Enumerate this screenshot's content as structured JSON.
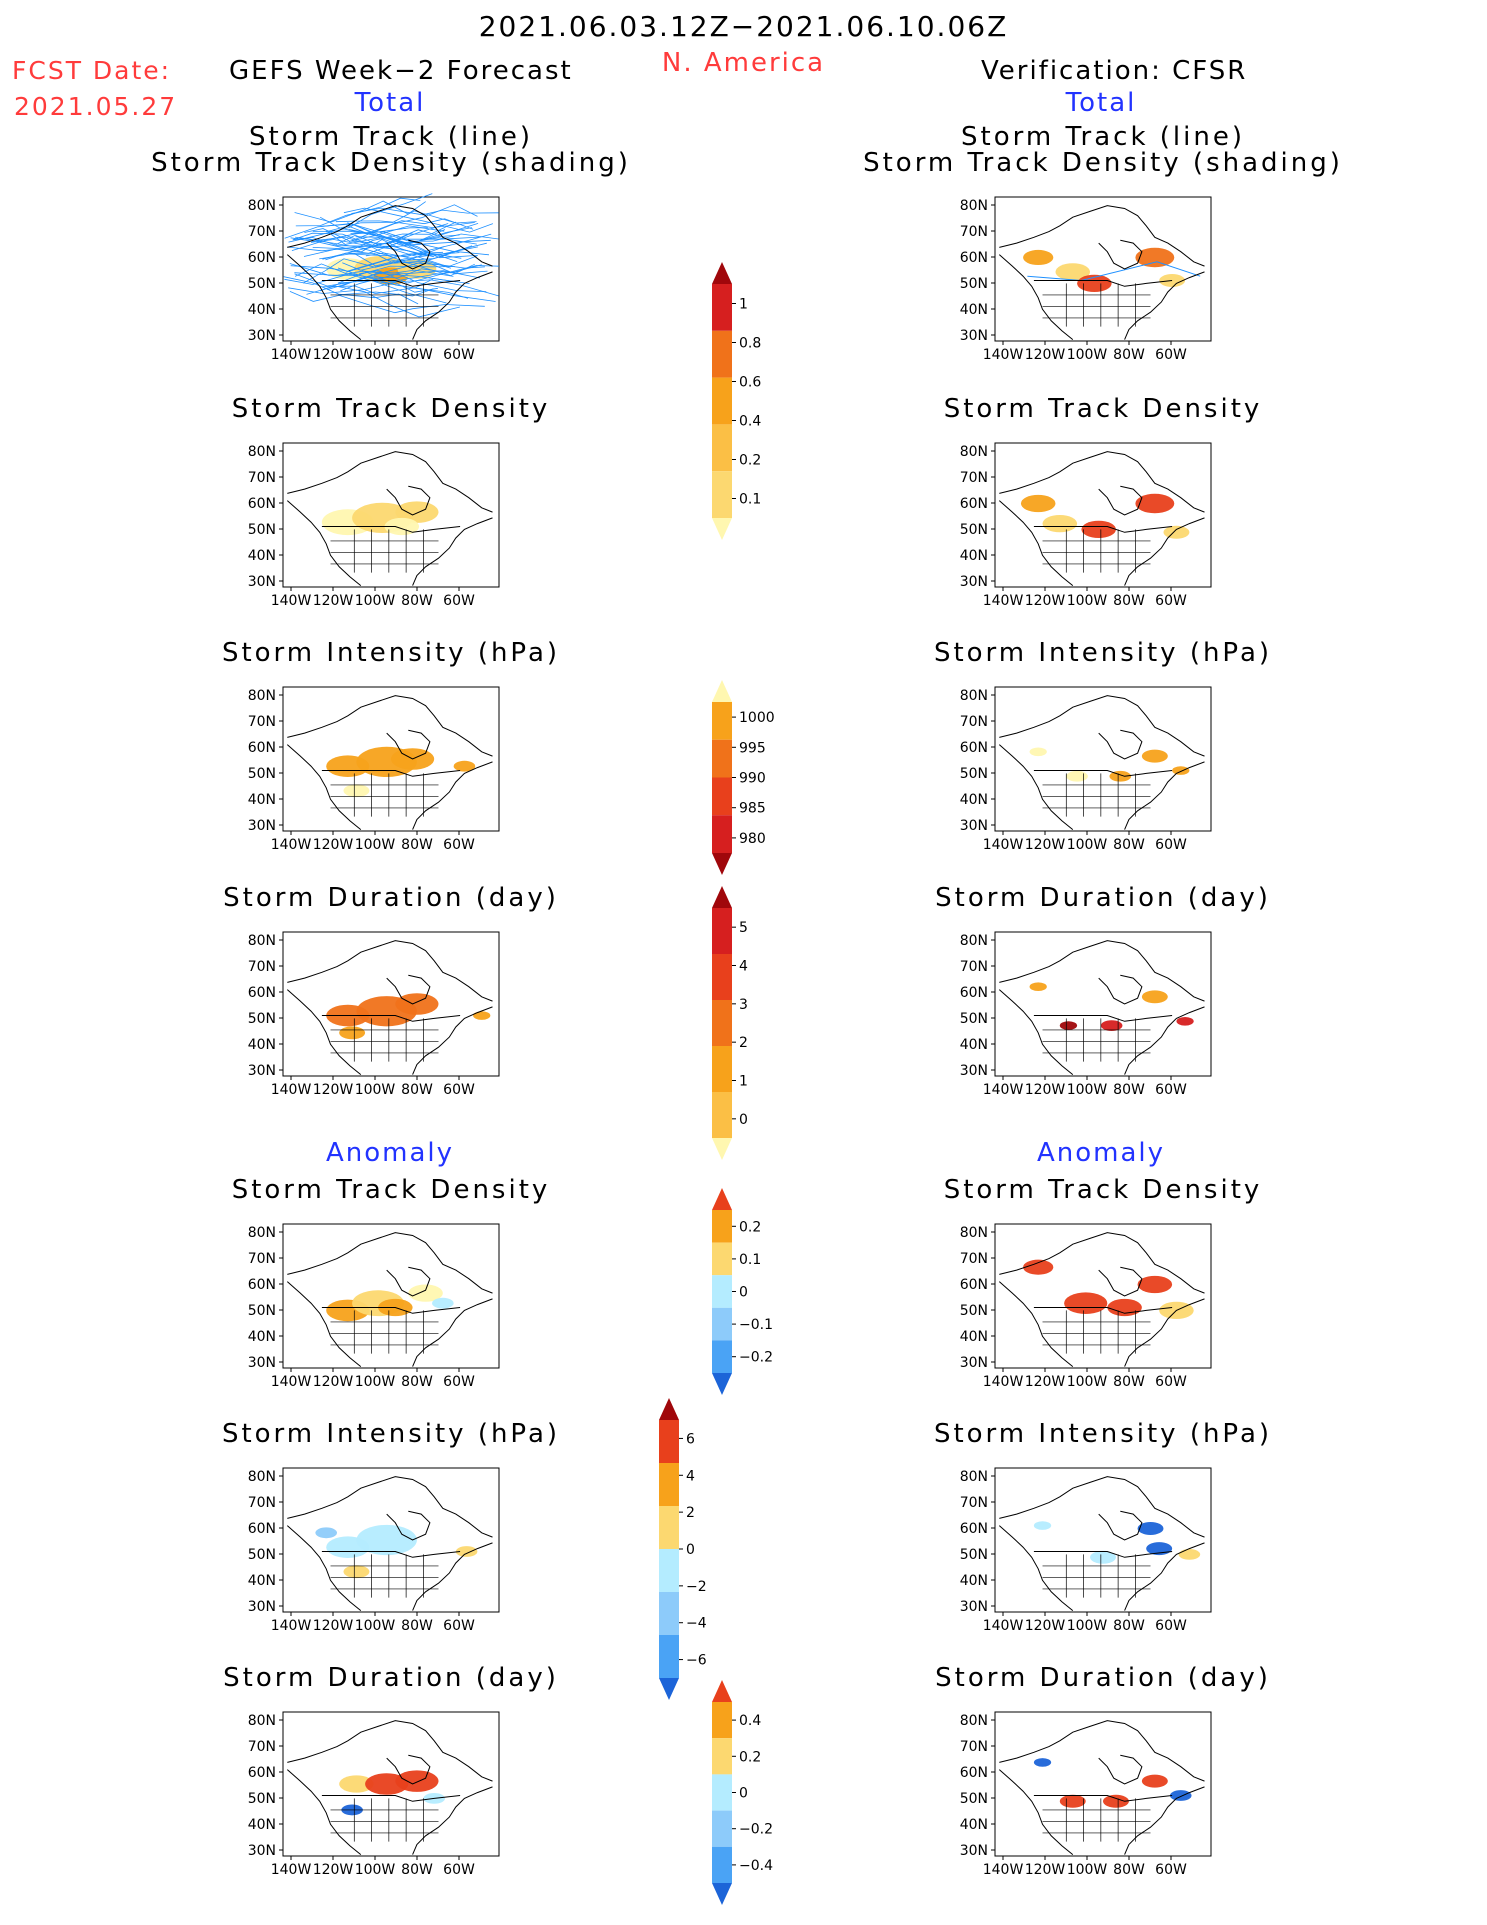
{
  "header": {
    "period": "2021.06.03.12Z−2021.06.10.06Z",
    "region": "N. America",
    "fcst_label": "FCST Date:",
    "fcst_date": "2021.05.27",
    "left_title": "GEFS Week−2 Forecast",
    "right_title": "Verification: CFSR",
    "left_total": "Total",
    "right_total": "Total",
    "left_anomaly": "Anomaly",
    "right_anomaly": "Anomaly"
  },
  "colors": {
    "text_red": "#ff3b3b",
    "text_blue": "#2233ff",
    "track_line": "#1e90ff",
    "pale_yellow": "#fff7b0",
    "yellow": "#fcd870",
    "light_orange": "#fbbf45",
    "orange": "#f7a21b",
    "dark_orange": "#f0721a",
    "red_orange": "#e8401c",
    "red": "#d61f1f",
    "dark_red": "#a0070b",
    "light_blue": "#b4ecff",
    "sky_blue": "#8dcbfa",
    "medium_blue": "#4aa3f5",
    "blue": "#1c64d8"
  },
  "axes": {
    "lat_labels": [
      "80N",
      "70N",
      "60N",
      "50N",
      "40N",
      "30N"
    ],
    "lon_labels": [
      "140W",
      "120W",
      "100W",
      "80W",
      "60W"
    ]
  },
  "panels": {
    "left": [
      {
        "title": [
          "Storm Track (line)",
          "Storm Track Density (shading)"
        ]
      },
      {
        "title": [
          "Storm Track Density"
        ]
      },
      {
        "title": [
          "Storm Intensity (hPa)"
        ]
      },
      {
        "title": [
          "Storm Duration (day)"
        ]
      },
      {
        "title": [
          "Storm Track Density"
        ]
      },
      {
        "title": [
          "Storm Intensity (hPa)"
        ]
      },
      {
        "title": [
          "Storm Duration (day)"
        ]
      }
    ],
    "right": [
      {
        "title": [
          "Storm Track (line)",
          "Storm Track Density (shading)"
        ]
      },
      {
        "title": [
          "Storm Track Density"
        ]
      },
      {
        "title": [
          "Storm Intensity (hPa)"
        ]
      },
      {
        "title": [
          "Storm Duration (day)"
        ]
      },
      {
        "title": [
          "Storm Track Density"
        ]
      },
      {
        "title": [
          "Storm Intensity (hPa)"
        ]
      },
      {
        "title": [
          "Storm Duration (day)"
        ]
      }
    ]
  },
  "chart_data": [
    {
      "type": "heatmap",
      "name": "Total storm track density",
      "colorbar_ticks": [
        "1",
        "0.8",
        "0.6",
        "0.4",
        "0.2",
        "0.1"
      ],
      "colorbar_colors": [
        "#a0070b",
        "#d61f1f",
        "#f0721a",
        "#f7a21b",
        "#fbbf45",
        "#fcd870",
        "#fff7b0"
      ]
    },
    {
      "type": "heatmap",
      "name": "Total storm intensity (hPa)",
      "colorbar_ticks": [
        "1000",
        "995",
        "990",
        "985",
        "980"
      ],
      "colorbar_colors": [
        "#fff7b0",
        "#f7a21b",
        "#f0721a",
        "#e8401c",
        "#d61f1f",
        "#a0070b"
      ]
    },
    {
      "type": "heatmap",
      "name": "Total storm duration (day)",
      "colorbar_ticks": [
        "5",
        "4",
        "3",
        "2",
        "1",
        "0"
      ],
      "colorbar_colors": [
        "#a0070b",
        "#d61f1f",
        "#e8401c",
        "#f0721a",
        "#f7a21b",
        "#fbbf45",
        "#fff7b0"
      ]
    },
    {
      "type": "heatmap",
      "name": "Anomaly storm track density",
      "colorbar_ticks": [
        "0.2",
        "0.1",
        "0",
        "−0.1",
        "−0.2"
      ],
      "colorbar_colors": [
        "#e8401c",
        "#f7a21b",
        "#fcd870",
        "#b4ecff",
        "#8dcbfa",
        "#4aa3f5",
        "#1c64d8"
      ]
    },
    {
      "type": "heatmap",
      "name": "Anomaly storm intensity (hPa)",
      "colorbar_ticks": [
        "6",
        "4",
        "2",
        "0",
        "−2",
        "−4",
        "−6"
      ],
      "colorbar_colors": [
        "#a0070b",
        "#e8401c",
        "#f7a21b",
        "#fcd870",
        "#b4ecff",
        "#8dcbfa",
        "#4aa3f5",
        "#1c64d8"
      ]
    },
    {
      "type": "heatmap",
      "name": "Anomaly storm duration (day)",
      "colorbar_ticks": [
        "0.4",
        "0.2",
        "0",
        "−0.2",
        "−0.4"
      ],
      "colorbar_colors": [
        "#e8401c",
        "#f7a21b",
        "#fcd870",
        "#b4ecff",
        "#8dcbfa",
        "#4aa3f5",
        "#1c64d8"
      ]
    }
  ]
}
